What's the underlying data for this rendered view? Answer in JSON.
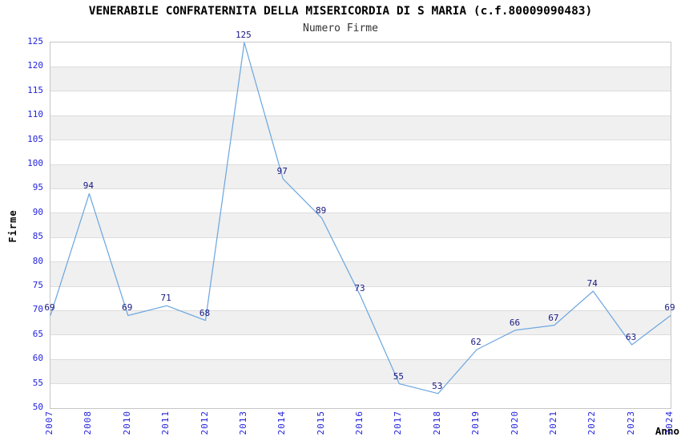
{
  "page": {
    "title": "VENERABILE CONFRATERNITA DELLA MISERICORDIA DI S MARIA (c.f.80009090483)",
    "subtitle": "Numero Firme"
  },
  "chart_data": {
    "type": "line",
    "title": "VENERABILE CONFRATERNITA DELLA MISERICORDIA DI S MARIA (c.f.80009090483)",
    "subtitle": "Numero Firme",
    "xlabel": "Anno",
    "ylabel": "Firme",
    "categories": [
      "2007",
      "2008",
      "2010",
      "2011",
      "2012",
      "2013",
      "2014",
      "2015",
      "2016",
      "2017",
      "2018",
      "2019",
      "2020",
      "2021",
      "2022",
      "2023",
      "2024"
    ],
    "values": [
      69,
      94,
      69,
      71,
      68,
      125,
      97,
      89,
      73,
      55,
      53,
      62,
      66,
      67,
      74,
      63,
      69
    ],
    "point_labels": [
      "69",
      "94",
      "69",
      "71",
      "68",
      "125",
      "97",
      "89",
      "73",
      "55",
      "53",
      "62",
      "66",
      "67",
      "74",
      "63",
      "69"
    ],
    "ylim": [
      50,
      125
    ],
    "ytick_step": 5,
    "yticks": [
      50,
      55,
      60,
      65,
      70,
      75,
      80,
      85,
      90,
      95,
      100,
      105,
      110,
      115,
      120,
      125
    ],
    "legend": "none",
    "grid": "horizontal-bands",
    "colors": {
      "line": "#6fa8e0",
      "tick_label": "#2222dd",
      "point_label": "#181884",
      "band_gray": "#f0f0f0",
      "band_white": "#ffffff",
      "grid_line": "#dcdcdc",
      "plot_border": "#c6c6c6",
      "title": "#000000",
      "subtitle": "#333333",
      "axis_label": "#000000"
    }
  }
}
